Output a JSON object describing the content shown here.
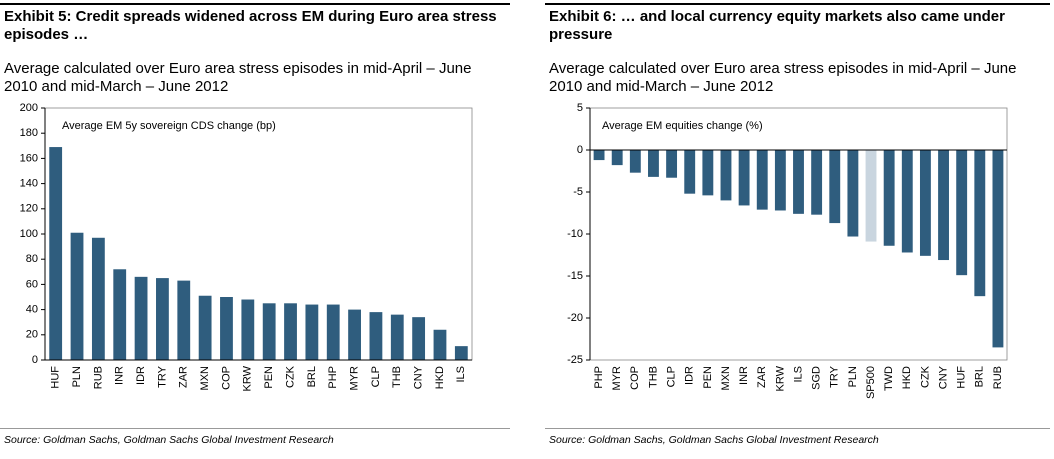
{
  "chart_data": [
    {
      "type": "bar",
      "title": "Exhibit 5: Credit spreads widened across EM during Euro area stress episodes …",
      "subtitle": "Average calculated over Euro area stress episodes in mid-April – June 2010 and mid-March – June 2012",
      "annotation": "Average EM 5y sovereign CDS change (bp)",
      "source": "Source: Goldman Sachs, Goldman Sachs Global Investment Research",
      "categories": [
        "HUF",
        "PLN",
        "RUB",
        "INR",
        "IDR",
        "TRY",
        "ZAR",
        "MXN",
        "COP",
        "KRW",
        "PEN",
        "CZK",
        "BRL",
        "PHP",
        "MYR",
        "CLP",
        "THB",
        "CNY",
        "HKD",
        "ILS"
      ],
      "values": [
        169,
        101,
        97,
        72,
        66,
        65,
        63,
        51,
        50,
        48,
        45,
        45,
        44,
        44,
        40,
        38,
        36,
        34,
        24,
        11
      ],
      "colors": [
        "#2f5d7e",
        "#2f5d7e",
        "#2f5d7e",
        "#2f5d7e",
        "#2f5d7e",
        "#2f5d7e",
        "#2f5d7e",
        "#2f5d7e",
        "#2f5d7e",
        "#2f5d7e",
        "#2f5d7e",
        "#2f5d7e",
        "#2f5d7e",
        "#2f5d7e",
        "#2f5d7e",
        "#2f5d7e",
        "#2f5d7e",
        "#2f5d7e",
        "#2f5d7e",
        "#2f5d7e"
      ],
      "ylim": [
        0,
        200
      ],
      "yticks": [
        0,
        20,
        40,
        60,
        80,
        100,
        120,
        140,
        160,
        180,
        200
      ]
    },
    {
      "type": "bar",
      "title": "Exhibit 6: … and local currency equity markets also came under pressure",
      "subtitle": "Average calculated over Euro area stress episodes in mid-April – June 2010 and mid-March – June 2012",
      "annotation": "Average EM equities change (%)",
      "source": "Source: Goldman Sachs, Goldman Sachs Global Investment Research",
      "categories": [
        "PHP",
        "MYR",
        "COP",
        "THB",
        "CLP",
        "IDR",
        "PEN",
        "MXN",
        "INR",
        "ZAR",
        "KRW",
        "ILS",
        "SGD",
        "TRY",
        "PLN",
        "SP500",
        "TWD",
        "HKD",
        "CZK",
        "CNY",
        "HUF",
        "BRL",
        "RUB"
      ],
      "values": [
        -1.2,
        -1.8,
        -2.7,
        -3.2,
        -3.3,
        -5.2,
        -5.4,
        -6,
        -6.6,
        -7.1,
        -7.2,
        -7.6,
        -7.7,
        -8.7,
        -10.3,
        -10.9,
        -11.4,
        -12.2,
        -12.6,
        -13.1,
        -14.9,
        -17.4,
        -23.5
      ],
      "colors": [
        "#2f5d7e",
        "#2f5d7e",
        "#2f5d7e",
        "#2f5d7e",
        "#2f5d7e",
        "#2f5d7e",
        "#2f5d7e",
        "#2f5d7e",
        "#2f5d7e",
        "#2f5d7e",
        "#2f5d7e",
        "#2f5d7e",
        "#2f5d7e",
        "#2f5d7e",
        "#2f5d7e",
        "#c9d5df",
        "#2f5d7e",
        "#2f5d7e",
        "#2f5d7e",
        "#2f5d7e",
        "#2f5d7e",
        "#2f5d7e",
        "#2f5d7e"
      ],
      "ylim": [
        -25,
        5
      ],
      "yticks": [
        -25,
        -20,
        -15,
        -10,
        -5,
        0,
        5
      ]
    }
  ]
}
